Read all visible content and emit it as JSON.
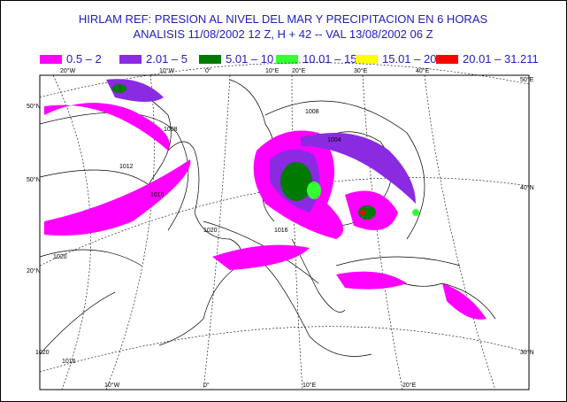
{
  "title": [
    "HIRLAM REF:  PRESION AL NIVEL DEL MAR Y  PRECIPITACION EN  6 HORAS",
    "ANALISIS 11/08/2002  12 Z,  H + 42  -- VAL 13/08/2002  06 Z"
  ],
  "legend": [
    {
      "label": "0.5  –  2",
      "color": "#ff00ff"
    },
    {
      "label": "2.01  –  5",
      "color": "#8a2be2"
    },
    {
      "label": "5.01  –  10",
      "color": "#007a00"
    },
    {
      "label": "10.01  –  15",
      "color": "#33ff33"
    },
    {
      "label": "15.01  –  20",
      "color": "#ffff00"
    },
    {
      "label": "20.01  –  31.211",
      "color": "#ff0000"
    }
  ],
  "map": {
    "graticule_labels": [
      "20°W",
      "10°W",
      "0°",
      "10°E",
      "20°E",
      "30°E",
      "40°E",
      "50°E",
      "50°N",
      "40°N",
      "30°N",
      "50°N",
      "20°N",
      "10°W",
      "0°",
      "10°E",
      "20°E"
    ],
    "isobar_labels": [
      "1008",
      "1012",
      "1016",
      "1020",
      "1004",
      "1008",
      "1020",
      "1016",
      "1020",
      "1016"
    ]
  }
}
